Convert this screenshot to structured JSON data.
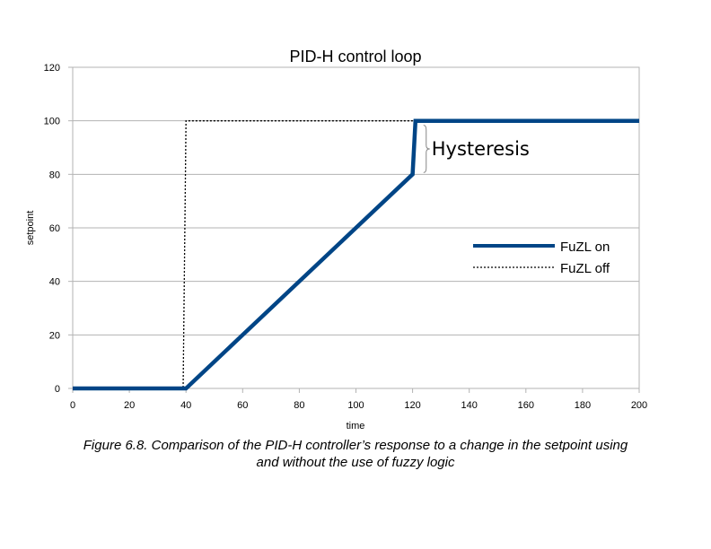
{
  "chart_data": {
    "type": "line",
    "title": "PID-H control loop",
    "xlabel": "time",
    "ylabel": "setpoint",
    "xlim": [
      0,
      200
    ],
    "ylim": [
      0,
      120
    ],
    "x_ticks": [
      0,
      20,
      40,
      60,
      80,
      100,
      120,
      140,
      160,
      180,
      200
    ],
    "y_ticks": [
      0,
      20,
      40,
      60,
      80,
      100,
      120
    ],
    "grid": "horizontal",
    "legend_position": "right",
    "series": [
      {
        "name": "FuZL on",
        "style": "solid-thick",
        "color": "#004586",
        "x": [
          0,
          40,
          120,
          121,
          200
        ],
        "y": [
          0,
          0,
          80,
          100,
          100
        ]
      },
      {
        "name": "FuZL off",
        "style": "dotted",
        "color": "#000000",
        "x": [
          0,
          39,
          40,
          121
        ],
        "y": [
          0,
          0,
          100,
          100
        ]
      }
    ],
    "annotation": {
      "text": "Hysteresis",
      "x": 121,
      "y_from": 80,
      "y_to": 100
    }
  },
  "caption": {
    "line1": "Figure 6.8. Comparison of the PID-H controller’s response to a change in the setpoint using",
    "line2": "and without the use of fuzzy logic"
  }
}
